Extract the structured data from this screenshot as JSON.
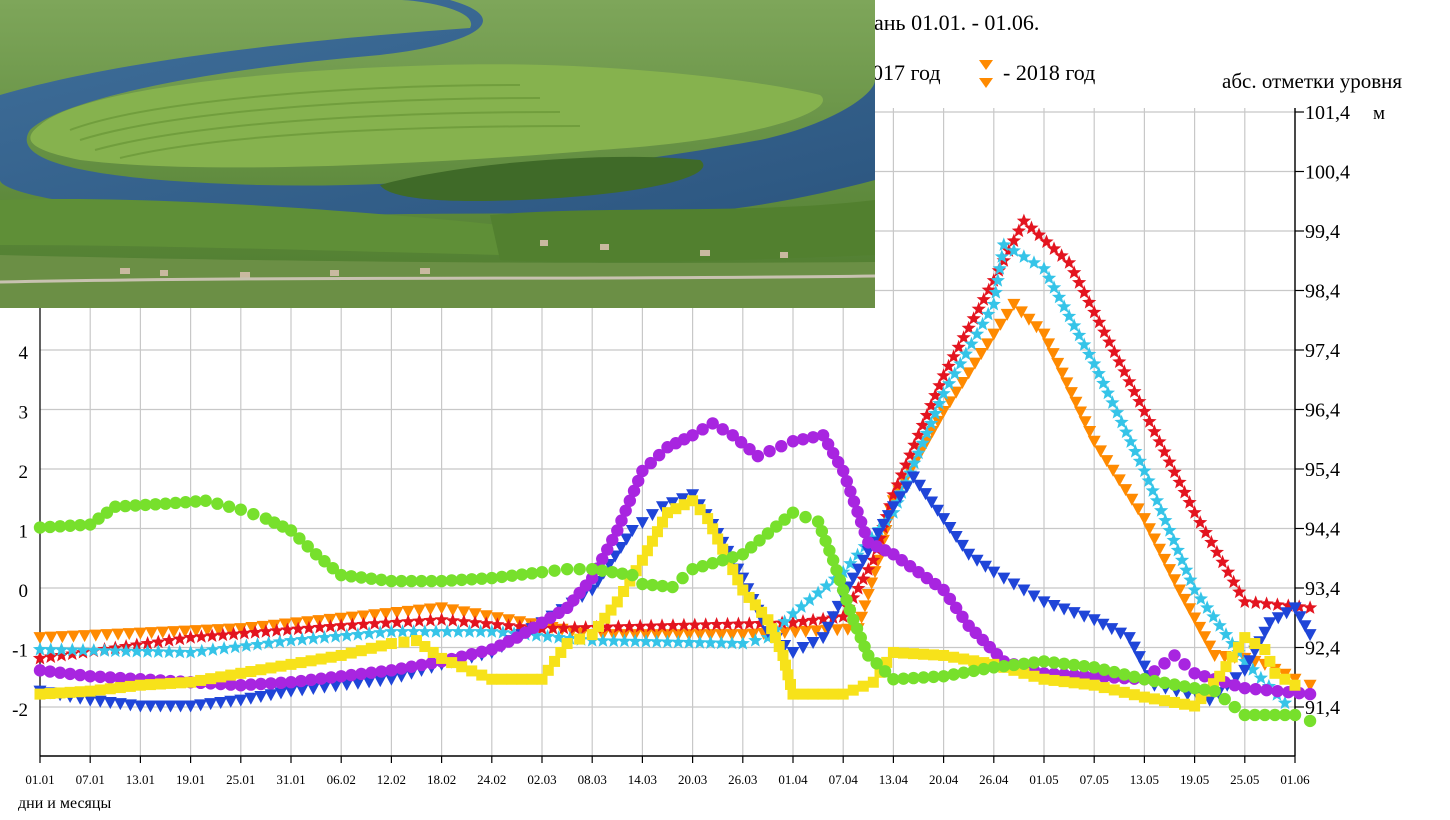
{
  "header": {
    "title_fragment": "ань 01.01. - 01.06.",
    "legend_2017_fragment": "017 год",
    "legend_2018_label": "- 2018 год",
    "right_axis_caption": "абс. отметки уровня",
    "right_axis_unit": "м"
  },
  "photo": {
    "subject": "aerial-river-floodplain-photo"
  },
  "chart_data": {
    "type": "scatter",
    "xlabel": "дни и месяцы",
    "x_ticks": [
      "01.01",
      "07.01",
      "13.01",
      "19.01",
      "25.01",
      "31.01",
      "06.02",
      "12.02",
      "18.02",
      "24.02",
      "02.03",
      "08.03",
      "14.03",
      "20.03",
      "26.03",
      "01.04",
      "07.04",
      "13.04",
      "20.04",
      "26.04",
      "01.05",
      "07.05",
      "13.05",
      "19.05",
      "25.05",
      "01.06"
    ],
    "y_left_ticks": [
      "4",
      "3",
      "2",
      "1",
      "0",
      "-1",
      "-2"
    ],
    "y_right_ticks": [
      "101,4",
      "100,4",
      "99,4",
      "98,4",
      "97,4",
      "96,4",
      "95,4",
      "94,4",
      "93,4",
      "92,4",
      "91,4"
    ],
    "ylim_left": [
      -2.7,
      5.0
    ],
    "grid": true,
    "series": [
      {
        "name": "",
        "color": "#ff8a00",
        "marker": "triangle-down",
        "points": [
          [
            0,
            -0.8
          ],
          [
            4,
            -0.65
          ],
          [
            8,
            -0.3
          ],
          [
            10,
            -0.6
          ],
          [
            11,
            -0.75
          ],
          [
            14,
            -0.75
          ],
          [
            16.3,
            -0.65
          ],
          [
            16.7,
            0.5
          ],
          [
            17,
            1.5
          ],
          [
            18,
            3.0
          ],
          [
            19,
            4.3
          ],
          [
            19.4,
            4.8
          ],
          [
            20,
            4.3
          ],
          [
            21,
            2.5
          ],
          [
            22,
            1.2
          ],
          [
            22.7,
            0.0
          ],
          [
            23.4,
            -1.1
          ],
          [
            24,
            -1.15
          ],
          [
            24.4,
            -1.25
          ],
          [
            25,
            -1.5
          ],
          [
            25.3,
            -1.6
          ]
        ]
      },
      {
        "name": "",
        "color": "#e3141f",
        "marker": "star",
        "points": [
          [
            0,
            -1.15
          ],
          [
            3,
            -0.8
          ],
          [
            6,
            -0.6
          ],
          [
            8,
            -0.5
          ],
          [
            10,
            -0.65
          ],
          [
            15,
            -0.55
          ],
          [
            16,
            -0.45
          ],
          [
            16.6,
            0.5
          ],
          [
            17,
            1.6
          ],
          [
            18,
            3.6
          ],
          [
            19,
            5.2
          ],
          [
            19.6,
            6.2
          ],
          [
            20.5,
            5.5
          ],
          [
            22,
            3.0
          ],
          [
            23,
            1.3
          ],
          [
            24,
            -0.2
          ],
          [
            25.3,
            -0.3
          ]
        ]
      },
      {
        "name": "",
        "color": "#35c4e8",
        "marker": "star",
        "points": [
          [
            0,
            -1.0
          ],
          [
            3,
            -1.05
          ],
          [
            5,
            -0.85
          ],
          [
            7,
            -0.7
          ],
          [
            9,
            -0.7
          ],
          [
            11,
            -0.85
          ],
          [
            14,
            -0.9
          ],
          [
            14.5,
            -0.8
          ],
          [
            15,
            -0.4
          ],
          [
            16,
            0.3
          ],
          [
            17,
            1.3
          ],
          [
            18,
            3.3
          ],
          [
            19,
            4.8
          ],
          [
            19.2,
            5.8
          ],
          [
            20,
            5.4
          ],
          [
            21,
            3.8
          ],
          [
            22,
            2.0
          ],
          [
            23,
            0.0
          ],
          [
            24,
            -1.2
          ],
          [
            24.8,
            -1.9
          ]
        ]
      },
      {
        "name": "",
        "color": "#1f45d8",
        "marker": "triangle-down",
        "points": [
          [
            0,
            -1.7
          ],
          [
            1,
            -1.85
          ],
          [
            2,
            -1.95
          ],
          [
            3,
            -1.95
          ],
          [
            4,
            -1.85
          ],
          [
            5,
            -1.7
          ],
          [
            7,
            -1.5
          ],
          [
            8,
            -1.25
          ],
          [
            9,
            -1.05
          ],
          [
            10,
            -0.55
          ],
          [
            11,
            0.0
          ],
          [
            11.8,
            1.0
          ],
          [
            12.4,
            1.4
          ],
          [
            13,
            1.6
          ],
          [
            13.4,
            1.1
          ],
          [
            14,
            0.2
          ],
          [
            14.5,
            -0.7
          ],
          [
            15,
            -1.05
          ],
          [
            15.6,
            -0.8
          ],
          [
            16,
            -0.1
          ],
          [
            16.6,
            0.8
          ],
          [
            17,
            1.4
          ],
          [
            17.4,
            1.9
          ],
          [
            18,
            1.2
          ],
          [
            18.5,
            0.6
          ],
          [
            19,
            0.3
          ],
          [
            20,
            -0.2
          ],
          [
            21,
            -0.5
          ],
          [
            21.7,
            -0.8
          ],
          [
            22.2,
            -1.6
          ],
          [
            23.3,
            -1.85
          ],
          [
            24,
            -1.35
          ],
          [
            24.5,
            -0.55
          ],
          [
            25,
            -0.3
          ],
          [
            25.3,
            -0.75
          ]
        ]
      },
      {
        "name": "",
        "color": "#a825e0",
        "marker": "circle",
        "points": [
          [
            0,
            -1.35
          ],
          [
            1,
            -1.45
          ],
          [
            2,
            -1.5
          ],
          [
            3,
            -1.55
          ],
          [
            4,
            -1.6
          ],
          [
            5,
            -1.55
          ],
          [
            6,
            -1.45
          ],
          [
            7,
            -1.35
          ],
          [
            8,
            -1.2
          ],
          [
            9,
            -1.0
          ],
          [
            9.5,
            -0.8
          ],
          [
            10,
            -0.55
          ],
          [
            10.5,
            -0.3
          ],
          [
            11,
            0.2
          ],
          [
            11.5,
            1.0
          ],
          [
            12,
            2.0
          ],
          [
            12.5,
            2.4
          ],
          [
            13,
            2.6
          ],
          [
            13.4,
            2.8
          ],
          [
            13.8,
            2.6
          ],
          [
            14.3,
            2.25
          ],
          [
            15,
            2.5
          ],
          [
            15.6,
            2.6
          ],
          [
            16,
            2.0
          ],
          [
            16.5,
            0.8
          ],
          [
            17,
            0.6
          ],
          [
            17.5,
            0.3
          ],
          [
            18,
            0.0
          ],
          [
            18.5,
            -0.6
          ],
          [
            19.2,
            -1.2
          ],
          [
            20,
            -1.4
          ],
          [
            21,
            -1.45
          ],
          [
            22,
            -1.5
          ],
          [
            22.6,
            -1.1
          ],
          [
            23,
            -1.4
          ],
          [
            24,
            -1.65
          ],
          [
            25.3,
            -1.75
          ]
        ]
      },
      {
        "name": "",
        "color": "#f7e21a",
        "marker": "square",
        "points": [
          [
            0,
            -1.75
          ],
          [
            1,
            -1.7
          ],
          [
            2,
            -1.6
          ],
          [
            3,
            -1.55
          ],
          [
            4,
            -1.4
          ],
          [
            5,
            -1.25
          ],
          [
            6,
            -1.1
          ],
          [
            7,
            -0.9
          ],
          [
            7.5,
            -0.85
          ],
          [
            8,
            -1.15
          ],
          [
            9,
            -1.5
          ],
          [
            10,
            -1.5
          ],
          [
            10.5,
            -0.9
          ],
          [
            11,
            -0.75
          ],
          [
            11.5,
            -0.2
          ],
          [
            12,
            0.5
          ],
          [
            12.5,
            1.3
          ],
          [
            13,
            1.5
          ],
          [
            13.3,
            1.2
          ],
          [
            14,
            0.0
          ],
          [
            14.5,
            -0.5
          ],
          [
            14.8,
            -1.1
          ],
          [
            15,
            -1.75
          ],
          [
            16,
            -1.75
          ],
          [
            16.6,
            -1.55
          ],
          [
            17,
            -1.05
          ],
          [
            18,
            -1.1
          ],
          [
            19,
            -1.25
          ],
          [
            20,
            -1.5
          ],
          [
            21,
            -1.6
          ],
          [
            22,
            -1.8
          ],
          [
            23,
            -1.95
          ],
          [
            23.5,
            -1.45
          ],
          [
            24,
            -0.8
          ],
          [
            24.4,
            -1.0
          ],
          [
            24.6,
            -1.4
          ],
          [
            25,
            -1.6
          ]
        ]
      },
      {
        "name": "",
        "color": "#77e02c",
        "marker": "circle",
        "points": [
          [
            0,
            1.05
          ],
          [
            1,
            1.1
          ],
          [
            1.5,
            1.4
          ],
          [
            2.5,
            1.45
          ],
          [
            3.3,
            1.5
          ],
          [
            4,
            1.35
          ],
          [
            4.5,
            1.2
          ],
          [
            5,
            1.0
          ],
          [
            5.5,
            0.6
          ],
          [
            6,
            0.25
          ],
          [
            7,
            0.15
          ],
          [
            8,
            0.15
          ],
          [
            9,
            0.2
          ],
          [
            10,
            0.3
          ],
          [
            10.5,
            0.35
          ],
          [
            11,
            0.35
          ],
          [
            11.8,
            0.25
          ],
          [
            12,
            0.1
          ],
          [
            12.6,
            0.05
          ],
          [
            13,
            0.35
          ],
          [
            14,
            0.6
          ],
          [
            14.5,
            0.95
          ],
          [
            15,
            1.3
          ],
          [
            15.5,
            1.15
          ],
          [
            15.8,
            0.5
          ],
          [
            16.2,
            -0.5
          ],
          [
            16.5,
            -1.1
          ],
          [
            17,
            -1.5
          ],
          [
            18,
            -1.45
          ],
          [
            19,
            -1.3
          ],
          [
            20,
            -1.2
          ],
          [
            21,
            -1.3
          ],
          [
            22,
            -1.5
          ],
          [
            23,
            -1.65
          ],
          [
            23.4,
            -1.7
          ],
          [
            24,
            -2.1
          ],
          [
            25,
            -2.1
          ],
          [
            25.3,
            -2.2
          ]
        ]
      }
    ]
  }
}
